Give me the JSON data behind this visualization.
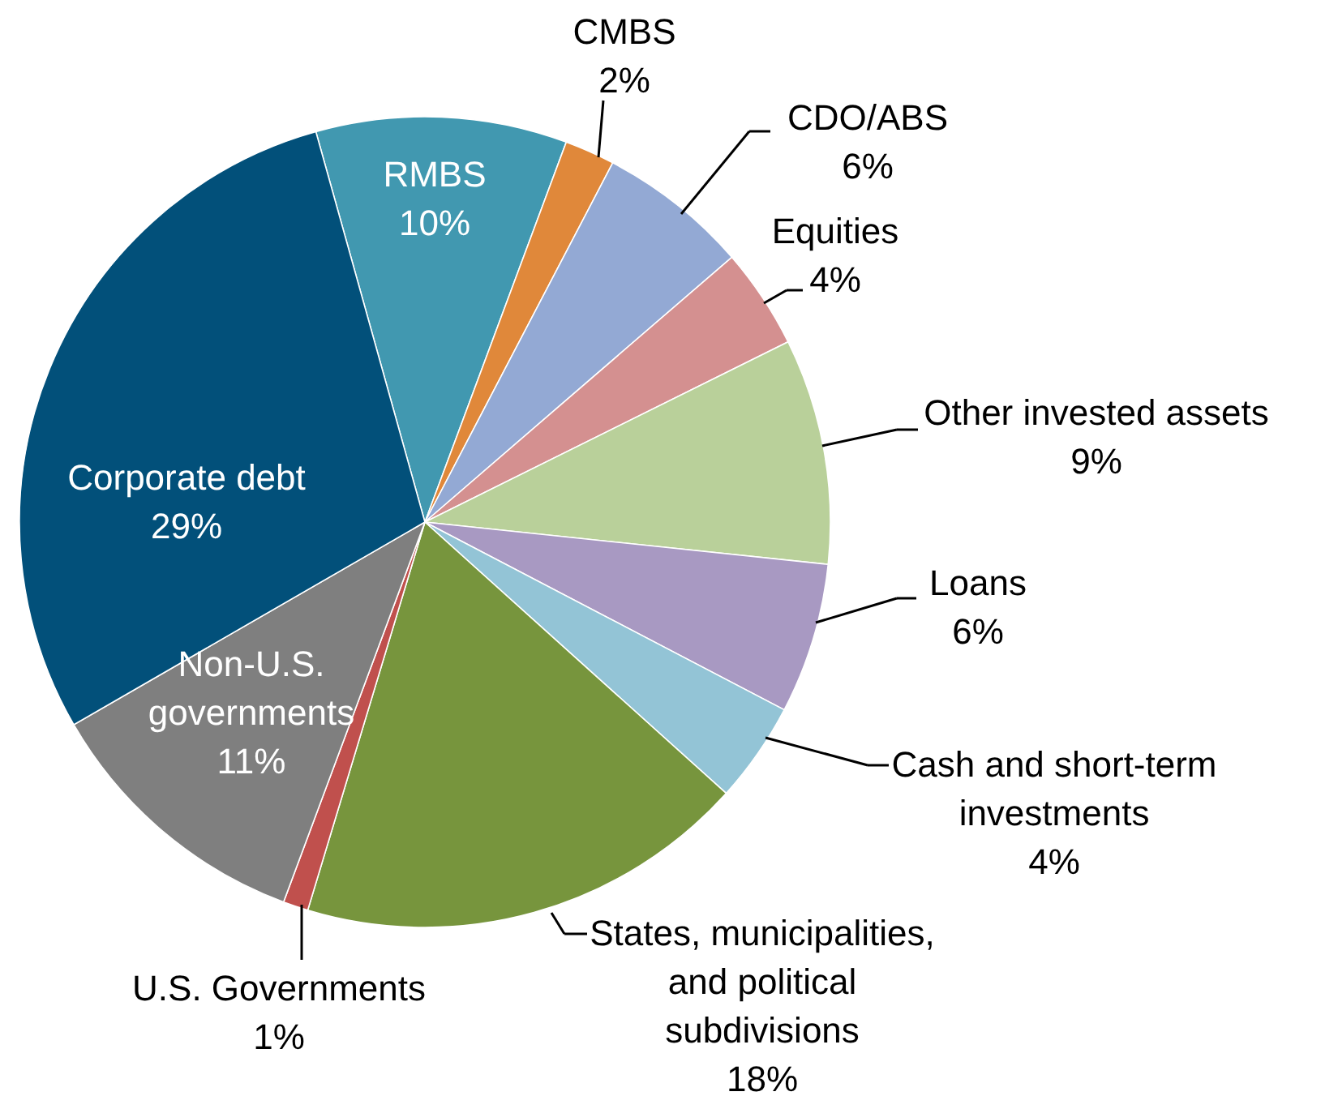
{
  "chart_data": {
    "type": "pie",
    "categories": [
      "RMBS",
      "CMBS",
      "CDO/ABS",
      "Equities",
      "Other invested assets",
      "Loans",
      "Cash and short-term investments",
      "States, municipalities, and political subdivisions",
      "U.S. Governments",
      "Non-U.S. governments",
      "Corporate debt"
    ],
    "values": [
      10,
      2,
      6,
      4,
      9,
      6,
      4,
      18,
      1,
      11,
      29
    ],
    "value_labels": [
      "10%",
      "2%",
      "6%",
      "4%",
      "9%",
      "6%",
      "4%",
      "18%",
      "1%",
      "11%",
      "29%"
    ],
    "colors": [
      "#4198b0",
      "#e0883a",
      "#93a9d4",
      "#d49090",
      "#b9d09a",
      "#a899c2",
      "#93c4d6",
      "#77953d",
      "#c0504d",
      "#7f7f7f",
      "#02507a"
    ]
  }
}
